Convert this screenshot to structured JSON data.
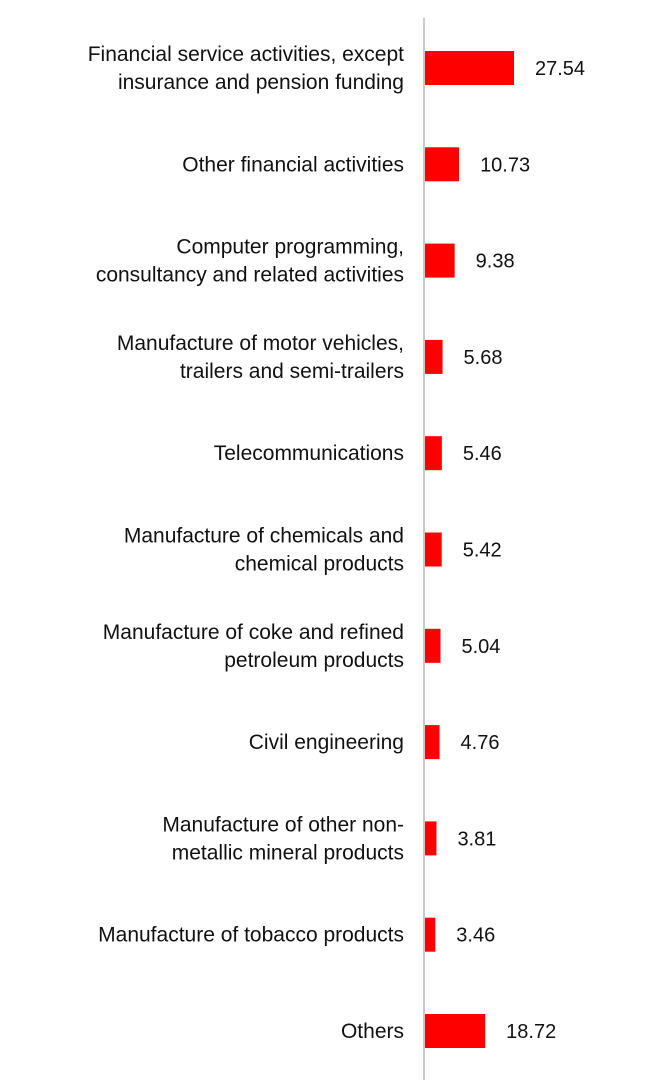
{
  "chart_data": {
    "type": "bar",
    "orientation": "horizontal",
    "title": "",
    "xlabel": "",
    "ylabel": "",
    "grid": false,
    "categories": [
      [
        "Financial service activities, except",
        "insurance and pension funding"
      ],
      [
        "Other financial activities"
      ],
      [
        "Computer programming,",
        "consultancy and related activities"
      ],
      [
        "Manufacture of motor vehicles,",
        "trailers and semi-trailers"
      ],
      [
        "Telecommunications"
      ],
      [
        "Manufacture of chemicals and",
        "chemical products"
      ],
      [
        "Manufacture of coke and refined",
        "petroleum products"
      ],
      [
        "Civil engineering"
      ],
      [
        "Manufacture of other non-",
        "metallic mineral products"
      ],
      [
        "Manufacture of tobacco products"
      ],
      [
        "Others"
      ]
    ],
    "values": [
      27.54,
      10.73,
      9.38,
      5.68,
      5.46,
      5.42,
      5.04,
      4.76,
      3.81,
      3.46,
      18.72
    ],
    "value_labels": [
      "27.54",
      "10.73",
      "9.38",
      "5.68",
      "5.46",
      "5.42",
      "5.04",
      "4.76",
      "3.81",
      "3.46",
      "18.72"
    ],
    "xlim": [
      0,
      27.54
    ],
    "bar_color": "#ff0000",
    "axis_color": "#c8c8c8"
  }
}
